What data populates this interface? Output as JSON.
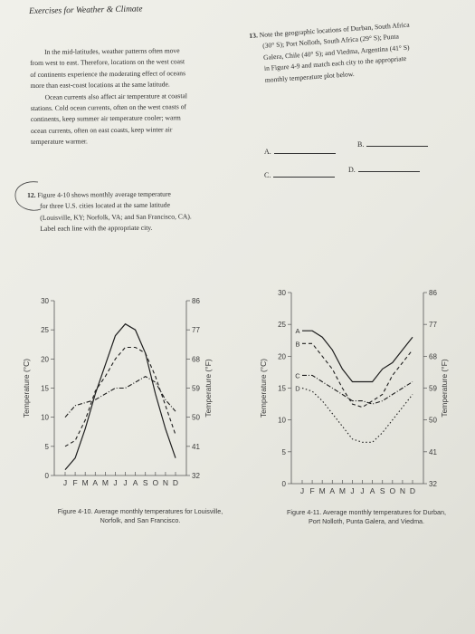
{
  "page": {
    "running_head": "Exercises for Weather & Climate"
  },
  "left_text": [
    "In the mid-latitudes, weather patterns often move",
    "from west to east. Therefore, locations on the west coast",
    "of continents experience the moderating effect of oceans",
    "more than east-coast locations at the same latitude.",
    "Ocean currents also affect air temperature at coastal",
    "stations. Cold ocean currents, often on the west coasts of",
    "continents, keep summer air temperature cooler; warm",
    "ocean currents, often on east coasts, keep winter air",
    "temperature warmer."
  ],
  "q12": {
    "number": "12.",
    "lines": [
      "Figure 4-10 shows monthly average temperature",
      "for three U.S. cities located at the same latitude",
      "(Louisville, KY; Norfolk, VA; and San Francisco, CA).",
      "Label each line with the appropriate city."
    ]
  },
  "q13": {
    "number": "13.",
    "lines": [
      "Note the geographic locations of Durban, South Africa",
      "(30° S); Port Nolloth, South Africa (29° S); Punta",
      "Galera, Chile (40° S); and Viedma, Argentina (41° S)",
      "in Figure 4-9 and match each city to the appropriate",
      "monthly temperature plot below."
    ],
    "answers": [
      {
        "label": "A.",
        "value": ""
      },
      {
        "label": "B.",
        "value": ""
      },
      {
        "label": "C.",
        "value": ""
      },
      {
        "label": "D.",
        "value": ""
      }
    ]
  },
  "chart_data": [
    {
      "type": "line",
      "title": "",
      "caption": [
        "Figure 4-10. Average monthly temperatures for Louisville,",
        "Norfolk, and San Francisco."
      ],
      "xlabel": "",
      "ylabel": "Temperature (°C)",
      "ylabel_right": "Temperature (°F)",
      "categories": [
        "J",
        "F",
        "M",
        "A",
        "M",
        "J",
        "J",
        "A",
        "S",
        "O",
        "N",
        "D"
      ],
      "ylim": [
        0,
        30
      ],
      "yticks_left": [
        "0",
        "5",
        "10",
        "15",
        "20",
        "25",
        "30"
      ],
      "yticks_right": [
        "32",
        "41",
        "50",
        "59",
        "68",
        "77",
        "86"
      ],
      "grid": false,
      "series": [
        {
          "style": "solid",
          "values": [
            1,
            3,
            8,
            14,
            19,
            24,
            26,
            25,
            21,
            14,
            8,
            3
          ]
        },
        {
          "style": "dashed",
          "values": [
            5,
            6,
            9.5,
            14.5,
            17,
            20,
            22,
            22,
            21,
            17,
            12,
            7
          ]
        },
        {
          "style": "dashdot",
          "values": [
            10,
            12,
            12.5,
            13,
            14,
            15,
            15,
            16,
            17,
            16,
            13,
            11
          ]
        }
      ]
    },
    {
      "type": "line",
      "title": "",
      "caption": [
        "Figure 4-11. Average monthly temperatures for Durban,",
        "Port Nolloth, Punta Galera, and Viedma."
      ],
      "xlabel": "",
      "ylabel": "Temperature (°C)",
      "ylabel_right": "Temperature (°F)",
      "categories": [
        "J",
        "F",
        "M",
        "A",
        "M",
        "J",
        "J",
        "A",
        "S",
        "O",
        "N",
        "D"
      ],
      "ylim": [
        0,
        30
      ],
      "yticks_left": [
        "0",
        "5",
        "10",
        "15",
        "20",
        "25",
        "30"
      ],
      "yticks_right": [
        "32",
        "41",
        "50",
        "59",
        "68",
        "77",
        "86"
      ],
      "grid": false,
      "series": [
        {
          "name": "A",
          "style": "solid",
          "values": [
            24,
            24,
            23,
            21,
            18,
            16,
            16,
            16,
            18,
            19,
            21,
            23
          ]
        },
        {
          "name": "B",
          "style": "dashed",
          "values": [
            22,
            22,
            20,
            18,
            15,
            12.5,
            12,
            13,
            14,
            17,
            19,
            21
          ]
        },
        {
          "name": "C",
          "style": "dashdot",
          "values": [
            17,
            17,
            16,
            15,
            14,
            13,
            13,
            12.5,
            13,
            14,
            15,
            16
          ]
        },
        {
          "name": "D",
          "style": "dotted",
          "values": [
            15,
            14.5,
            13,
            11,
            9,
            7,
            6.5,
            6.5,
            8,
            10,
            12,
            14
          ]
        }
      ]
    }
  ]
}
